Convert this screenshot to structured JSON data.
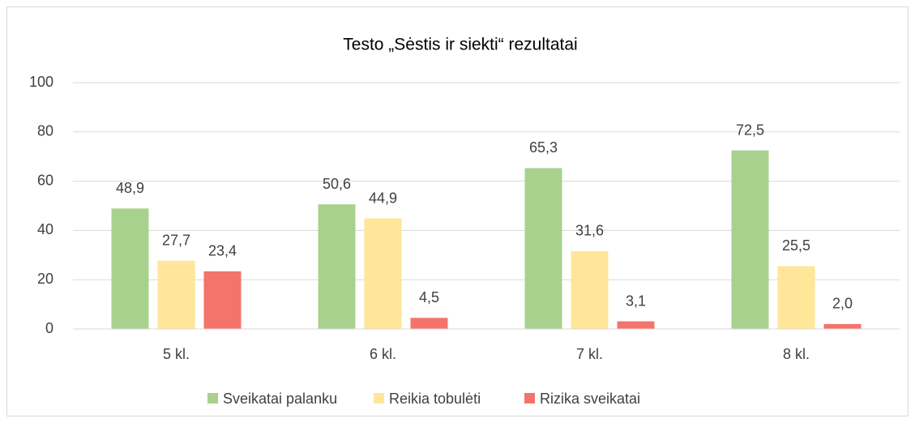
{
  "chart_data": {
    "type": "bar",
    "title": "Testo „Sėstis ir siekti“ rezultatai",
    "categories": [
      "5 kl.",
      "6 kl.",
      "7 kl.",
      "8 kl."
    ],
    "series": [
      {
        "name": "Sveikatai palanku",
        "color": "#a9d18e",
        "values": [
          48.9,
          50.6,
          65.3,
          72.5
        ],
        "value_labels": [
          "48,9",
          "50,6",
          "65,3",
          "72,5"
        ]
      },
      {
        "name": "Reikia tobulėti",
        "color": "#ffe699",
        "values": [
          27.7,
          44.9,
          31.6,
          25.5
        ],
        "value_labels": [
          "27,7",
          "44,9",
          "31,6",
          "25,5"
        ]
      },
      {
        "name": "Rizika sveikatai",
        "color": "#f4736b",
        "values": [
          23.4,
          4.5,
          3.1,
          2.0
        ],
        "value_labels": [
          "23,4",
          "4,5",
          "3,1",
          "2,0"
        ]
      }
    ],
    "ylim": [
      0,
      100
    ],
    "yticks": [
      0,
      20,
      40,
      60,
      80,
      100
    ],
    "grid": true,
    "legend": "bottom"
  }
}
